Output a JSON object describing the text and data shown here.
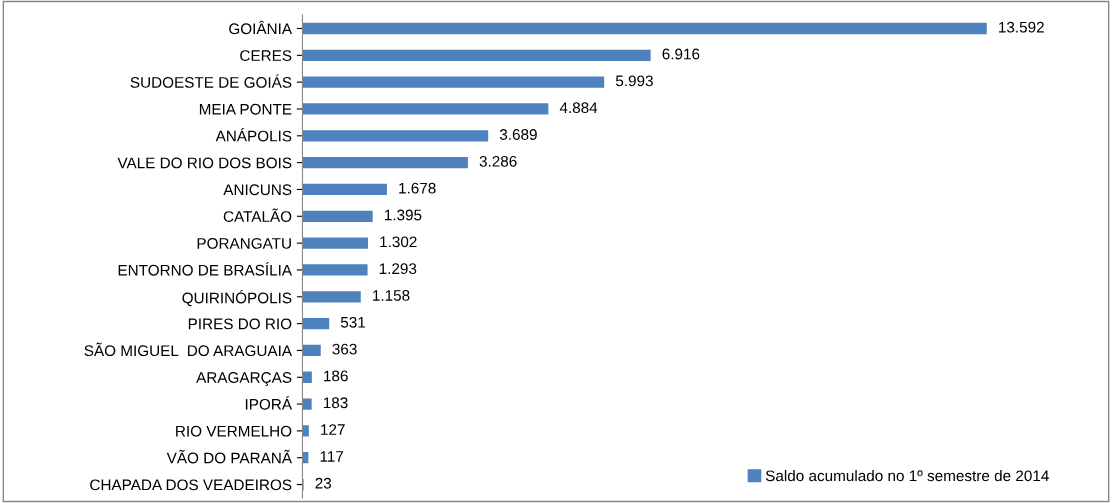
{
  "chart_data": {
    "type": "bar",
    "orientation": "horizontal",
    "categories": [
      "GOIÂNIA",
      "CERES",
      "SUDOESTE DE GOIÁS",
      "MEIA PONTE",
      "ANÁPOLIS",
      "VALE DO RIO DOS BOIS",
      "ANICUNS",
      "CATALÃO",
      "PORANGATU",
      "ENTORNO DE BRASÍLIA",
      "QUIRINÓPOLIS",
      "PIRES DO RIO",
      "SÃO MIGUEL  DO ARAGUAIA",
      "ARAGARÇAS",
      "IPORÁ",
      "RIO VERMELHO",
      "VÃO DO PARANÃ",
      "CHAPADA DOS VEADEIROS"
    ],
    "series": [
      {
        "name": "Saldo acumulado no 1º semestre de 2014",
        "color": "#4f81bd",
        "values": [
          13592,
          6916,
          5993,
          4884,
          3689,
          3286,
          1678,
          1395,
          1302,
          1293,
          1158,
          531,
          363,
          186,
          183,
          127,
          117,
          23
        ],
        "value_labels": [
          "13.592",
          "6.916",
          "5.993",
          "4.884",
          "3.689",
          "3.286",
          "1.678",
          "1.395",
          "1.302",
          "1.293",
          "1.158",
          "531",
          "363",
          "186",
          "183",
          "127",
          "117",
          "23"
        ]
      }
    ],
    "legend": "bottom right",
    "grid": false
  }
}
